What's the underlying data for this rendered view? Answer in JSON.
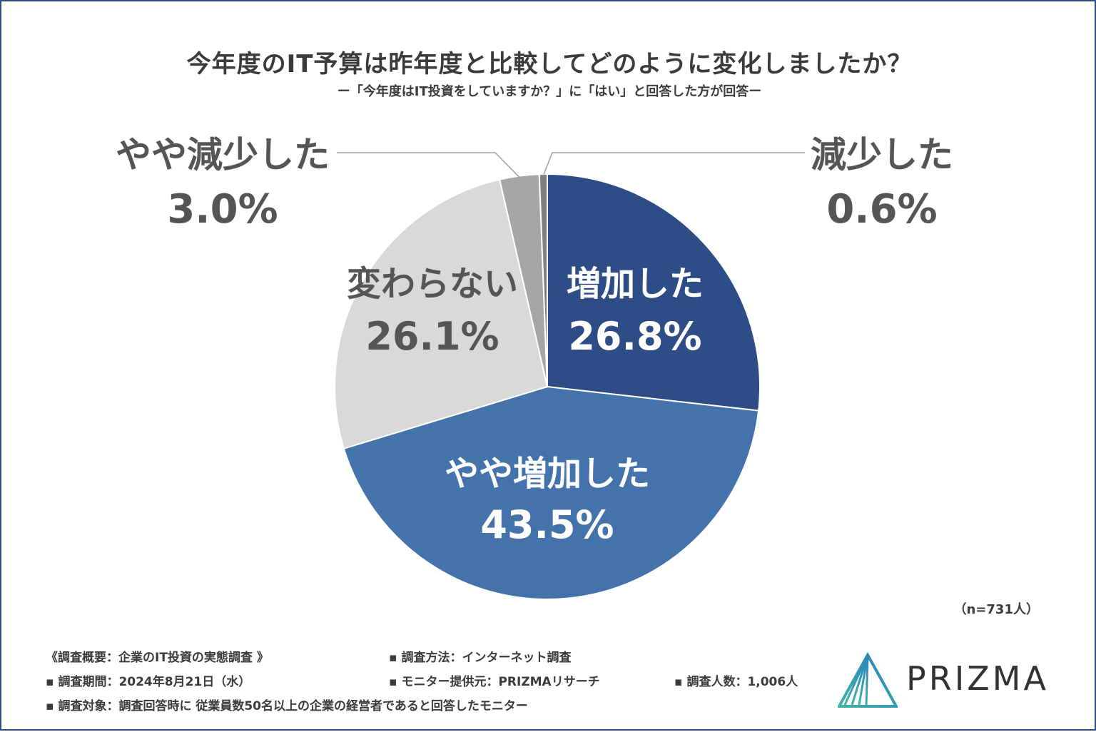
{
  "title": "今年度のIT予算は昨年度と比較してどのように変化しましたか？",
  "subtitle": "ー「今年度はIT投資をしていますか？」に「はい」と回答した方が回答ー",
  "chart_data": {
    "type": "pie",
    "slices": [
      {
        "label": "増加した",
        "value": 26.8,
        "value_text": "26.8%",
        "color": "#2e4d86"
      },
      {
        "label": "やや増加した",
        "value": 43.5,
        "value_text": "43.5%",
        "color": "#4472ab"
      },
      {
        "label": "変わらない",
        "value": 26.1,
        "value_text": "26.1%",
        "color": "#d9d9d9"
      },
      {
        "label": "やや減少した",
        "value": 3.0,
        "value_text": "3.0%",
        "color": "#a6a6a6"
      },
      {
        "label": "減少した",
        "value": 0.6,
        "value_text": "0.6%",
        "color": "#7f7f7f"
      }
    ]
  },
  "n_label": "（n=731人）",
  "footer": {
    "overview": "《調査概要：企業のIT投資の実態調査 》",
    "method": "▪ 調査方法：インターネット調査",
    "period": "▪ 調査期間：2024年8月21日（水）",
    "provider": "▪ モニター提供元：PRIZMAリサーチ",
    "count": "▪ 調査人数：1,006人",
    "target": "▪ 調査対象：調査回答時に 従業員数50名以上の企業の経営者であると回答したモニター"
  },
  "logo": {
    "text": "PRIZMA"
  }
}
